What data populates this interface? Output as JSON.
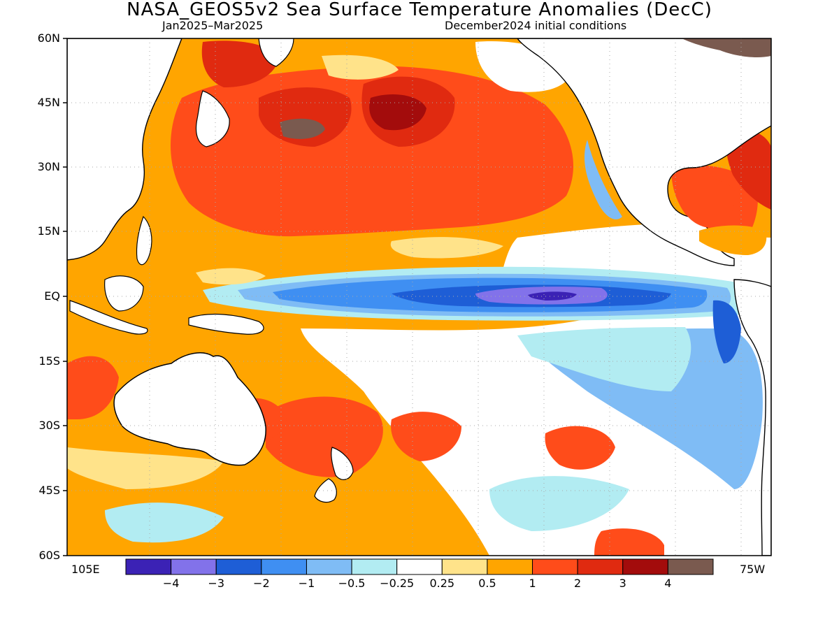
{
  "header": {
    "title": "NASA_GEOS5v2 Sea Surface Temperature Anomalies (DecC)",
    "period": "Jan2025–Mar2025",
    "init": "December2024 initial conditions"
  },
  "axes": {
    "lat_labels": [
      "60N",
      "45N",
      "30N",
      "15N",
      "EQ",
      "15S",
      "30S",
      "45S",
      "60S"
    ],
    "lon_left": "105E",
    "lon_right": "75W"
  },
  "colorbar": {
    "colors": [
      "#3b22b5",
      "#8272ea",
      "#1e5ed6",
      "#3f8ff2",
      "#7fbcf5",
      "#b2ecf2",
      "#ffffff",
      "#ffe38a",
      "#ffa500",
      "#ff4c1a",
      "#e02a10",
      "#a30c0c",
      "#7a5a4f"
    ],
    "tick_labels": [
      "−4",
      "−3",
      "−2",
      "−1",
      "−0.5",
      "−0.25",
      "0.25",
      "0.5",
      "1",
      "2",
      "3",
      "4"
    ]
  }
}
